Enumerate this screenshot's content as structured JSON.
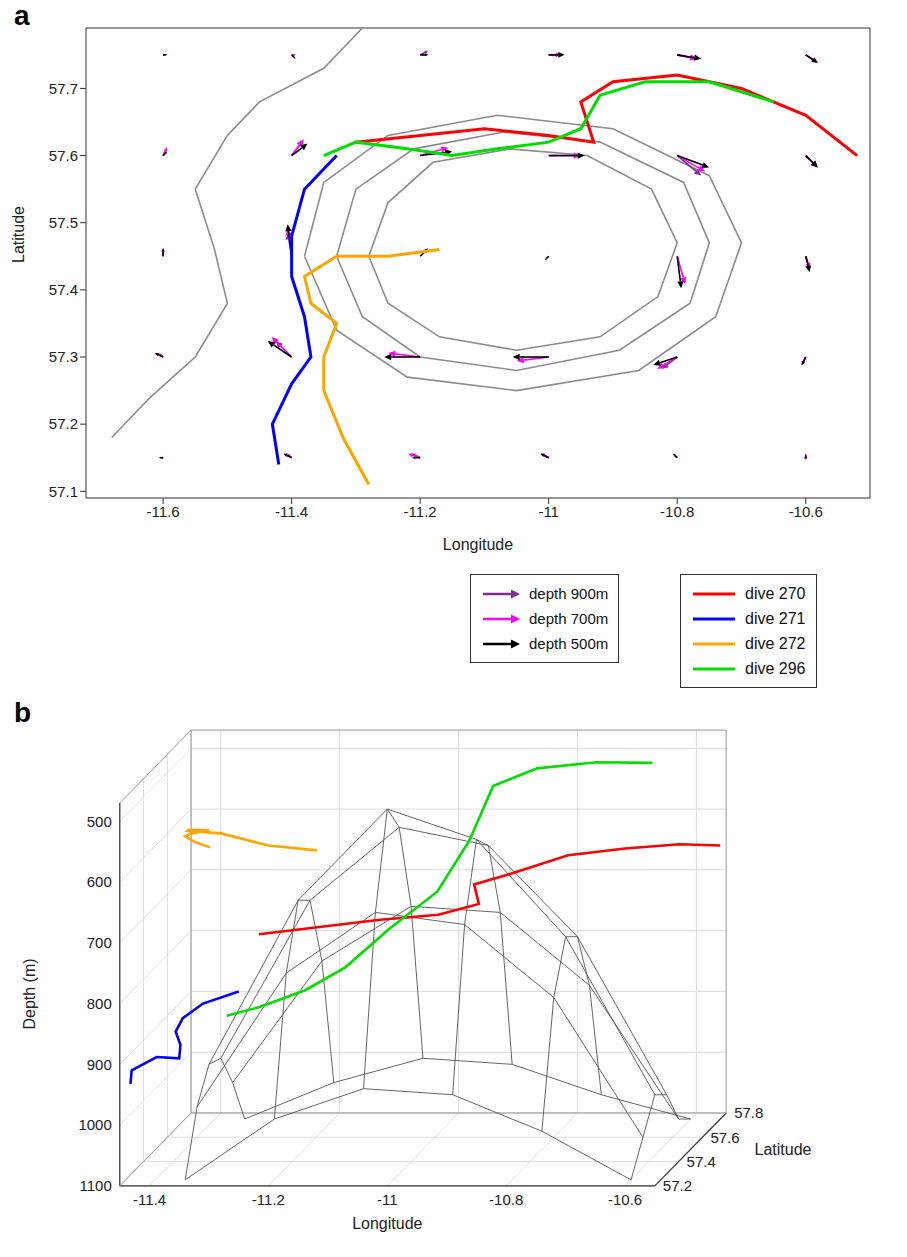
{
  "chart_data": [
    {
      "panel": "a",
      "type": "quiver",
      "xlabel": "Longitude",
      "ylabel": "Latitude",
      "xlim": [
        -11.72,
        -10.5
      ],
      "xticks": [
        -11.6,
        -11.4,
        -11.2,
        -11,
        -10.8,
        -10.6
      ],
      "ylim": [
        57.09,
        57.79
      ],
      "yticks": [
        57.1,
        57.2,
        57.3,
        57.4,
        57.5,
        57.6,
        57.7
      ],
      "legend": "bottom",
      "vectors": {
        "x": [
          -11.6,
          -11.4,
          -11.2,
          -11,
          -10.8,
          -10.6,
          -11.6,
          -11.4,
          -11.2,
          -11,
          -10.8,
          -10.6,
          -11.6,
          -11.4,
          -11.2,
          -11,
          -10.8,
          -10.6,
          -11.6,
          -11.4,
          -11.2,
          -11,
          -10.8,
          -10.6,
          -11.6,
          -11.4,
          -11.2,
          -11,
          -10.8,
          -10.6
        ],
        "y": [
          57.15,
          57.15,
          57.15,
          57.15,
          57.15,
          57.15,
          57.3,
          57.3,
          57.3,
          57.3,
          57.3,
          57.3,
          57.45,
          57.45,
          57.45,
          57.45,
          57.45,
          57.45,
          57.6,
          57.6,
          57.6,
          57.6,
          57.6,
          57.6,
          57.75,
          57.75,
          57.75,
          57.75,
          57.75,
          57.75
        ],
        "series": [
          {
            "name": "depth 900m",
            "color": "#7e2f8e",
            "u": [
              -1,
              -1,
              -2,
              -2,
              -1,
              0,
              -1,
              -4,
              null,
              null,
              -4,
              -1,
              0,
              -1,
              null,
              null,
              null,
              1,
              1,
              3,
              null,
              null,
              6,
              3,
              1,
              1,
              2,
              3,
              5,
              3
            ],
            "v": [
              0,
              1,
              1,
              1,
              1,
              0,
              1,
              4,
              null,
              null,
              -3,
              -2,
              2,
              6,
              null,
              null,
              null,
              -3,
              2,
              4,
              null,
              null,
              -5,
              -3,
              0,
              0,
              1,
              0,
              -1,
              -2
            ]
          },
          {
            "name": "depth 700m",
            "color": "#ff00ff",
            "u": [
              -1,
              -2,
              -3,
              -2,
              -1,
              0,
              -2,
              -5,
              -8,
              -8,
              -5,
              -1,
              0,
              -1,
              null,
              null,
              2,
              1,
              1,
              3,
              7,
              8,
              7,
              3,
              1,
              1,
              2,
              3,
              5,
              3
            ],
            "v": [
              0,
              1,
              1,
              1,
              1,
              1,
              1,
              5,
              1,
              -1,
              -3,
              -2,
              2,
              7,
              null,
              null,
              -7,
              -3,
              2,
              4,
              2,
              0,
              -4,
              -3,
              0,
              0,
              0,
              0,
              -1,
              -2
            ]
          },
          {
            "name": "depth 500m",
            "color": "#000000",
            "u": [
              -1,
              -2,
              -2,
              -2,
              -1,
              0,
              -2,
              -6,
              -9,
              -9,
              -6,
              -1,
              0,
              -1,
              2,
              -1,
              1,
              1,
              1,
              4,
              8,
              9,
              8,
              3,
              1,
              1,
              2,
              4,
              6,
              3
            ],
            "v": [
              0,
              1,
              0,
              1,
              1,
              1,
              1,
              4,
              0,
              0,
              -2,
              -2,
              2,
              8,
              2,
              -1,
              -8,
              -4,
              1,
              3,
              1,
              0,
              -3,
              -3,
              0,
              -1,
              0,
              0,
              -1,
              -2
            ]
          }
        ]
      },
      "contours": {
        "color": "#8c8c8c",
        "lines": [
          {
            "x": [
              -11.38,
              -11.35,
              -11.25,
              -11.08,
              -10.9,
              -10.75,
              -10.7,
              -10.74,
              -10.86,
              -11.05,
              -11.22,
              -11.33,
              -11.38
            ],
            "y": [
              57.45,
              57.56,
              57.63,
              57.66,
              57.64,
              57.57,
              57.47,
              57.36,
              57.28,
              57.25,
              57.27,
              57.34,
              57.45
            ]
          },
          {
            "x": [
              -11.33,
              -11.3,
              -11.21,
              -11.07,
              -10.92,
              -10.79,
              -10.75,
              -10.78,
              -10.89,
              -11.05,
              -11.2,
              -11.29,
              -11.33
            ],
            "y": [
              57.45,
              57.55,
              57.61,
              57.635,
              57.62,
              57.56,
              57.47,
              57.38,
              57.31,
              57.28,
              57.3,
              57.36,
              57.45
            ]
          },
          {
            "x": [
              -11.28,
              -11.25,
              -11.18,
              -11.06,
              -10.94,
              -10.84,
              -10.8,
              -10.83,
              -10.92,
              -11.05,
              -11.17,
              -11.25,
              -11.28
            ],
            "y": [
              57.45,
              57.53,
              57.59,
              57.61,
              57.6,
              57.55,
              57.47,
              57.39,
              57.33,
              57.31,
              57.33,
              57.38,
              57.45
            ]
          },
          {
            "x": [
              -11.68,
              -11.62,
              -11.55,
              -11.5,
              -11.52,
              -11.55,
              -11.5,
              -11.45,
              -11.35,
              -11.3,
              -11.28
            ],
            "y": [
              57.18,
              57.24,
              57.3,
              57.38,
              57.46,
              57.55,
              57.63,
              57.68,
              57.73,
              57.78,
              57.8
            ]
          }
        ]
      },
      "series": [
        {
          "name": "dive 270",
          "color": "#ff0000",
          "x": [
            -10.52,
            -10.6,
            -10.7,
            -10.8,
            -10.9,
            -10.95,
            -10.93,
            -11,
            -11.1,
            -11.2,
            -11.3
          ],
          "y": [
            57.6,
            57.66,
            57.7,
            57.72,
            57.71,
            57.68,
            57.62,
            57.63,
            57.64,
            57.63,
            57.62
          ],
          "z": [
            620,
            630,
            645,
            660,
            690,
            700,
            720,
            740,
            750,
            760,
            770
          ]
        },
        {
          "name": "dive 271",
          "color": "#0000ff",
          "x": [
            -11.33,
            -11.38,
            -11.4,
            -11.4,
            -11.38,
            -11.37,
            -11.4,
            -11.43,
            -11.42
          ],
          "y": [
            57.6,
            57.55,
            57.48,
            57.42,
            57.36,
            57.3,
            57.26,
            57.2,
            57.14
          ],
          "z": [
            860,
            870,
            880,
            890,
            900,
            910,
            900,
            910,
            920
          ]
        },
        {
          "name": "dive 272",
          "color": "#ffa500",
          "x": [
            -11.17,
            -11.25,
            -11.33,
            -11.38,
            -11.37,
            -11.33,
            -11.35,
            -11.35,
            -11.32,
            -11.28
          ],
          "y": [
            57.46,
            57.45,
            57.45,
            57.42,
            57.38,
            57.35,
            57.3,
            57.25,
            57.18,
            57.11
          ],
          "z": [
            600,
            590,
            570,
            560,
            550,
            545,
            540,
            535,
            530,
            525
          ]
        },
        {
          "name": "dive 296",
          "color": "#00dd00",
          "x": [
            -10.65,
            -10.75,
            -10.85,
            -10.92,
            -10.95,
            -11,
            -11.08,
            -11.15,
            -11.22,
            -11.3,
            -11.35
          ],
          "y": [
            57.68,
            57.71,
            57.71,
            57.69,
            57.64,
            57.62,
            57.61,
            57.6,
            57.61,
            57.62,
            57.6
          ],
          "z": [
            500,
            505,
            515,
            540,
            620,
            700,
            760,
            820,
            860,
            890,
            900
          ]
        }
      ]
    },
    {
      "panel": "b",
      "type": "surface3d",
      "xlabel": "Longitude",
      "ylabel": "Latitude",
      "zlabel": "Depth (m)",
      "xlim": [
        -11.45,
        -10.55
      ],
      "xticks": [
        -11.4,
        -11.2,
        -11,
        -10.8,
        -10.6
      ],
      "ylim": [
        57.2,
        57.8
      ],
      "yticks": [
        57.2,
        57.4,
        57.6,
        57.8
      ],
      "zlim": [
        470,
        1100
      ],
      "zticks": [
        500,
        600,
        700,
        800,
        900,
        1000,
        1100
      ],
      "grid": true,
      "surface": {
        "color": "#555555",
        "x": [
          -11.35,
          -11.2,
          -11.05,
          -10.9,
          -10.75,
          -10.6
        ],
        "y": [
          57.25,
          57.35,
          57.45,
          57.55,
          57.65,
          57.75
        ],
        "z": [
          [
            1100,
            1000,
            950,
            960,
            1020,
            1100
          ],
          [
            1000,
            780,
            680,
            700,
            820,
            1050
          ],
          [
            950,
            680,
            530,
            580,
            740,
            1000
          ],
          [
            960,
            700,
            580,
            610,
            760,
            1020
          ],
          [
            1020,
            820,
            730,
            740,
            860,
            1080
          ],
          [
            1100,
            1040,
            1000,
            1010,
            1060,
            1100
          ]
        ]
      }
    }
  ]
}
